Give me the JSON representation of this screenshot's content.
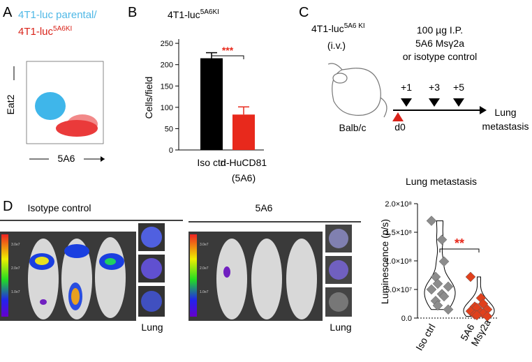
{
  "panel_labels": [
    "A",
    "B",
    "C",
    "D"
  ],
  "panel_a": {
    "title_1": "4T1-luc parental/",
    "title_2": "4T1-luc",
    "title_2_sup": "5A6KI",
    "y_label": "Eat2",
    "x_label": "5A6"
  },
  "panel_c": {
    "cell_line": "4T1-luc",
    "cell_line_sup": "5A6 KI",
    "route": "(i.v.)",
    "treatment": [
      "100 µg I.P.",
      "5A6 Msγ2a",
      "or isotype control"
    ],
    "days": [
      "+1",
      "+3",
      "+5"
    ],
    "start": "d0",
    "mouse": "Balb/c",
    "outcome": [
      "Lung",
      "metastasis"
    ]
  },
  "panel_d": {
    "groups": [
      "Isotype control",
      "5A6"
    ],
    "organ": "Lung",
    "scale_labels": [
      "3.0e7",
      "2.0e7",
      "1.0e7"
    ]
  },
  "chart_data": [
    {
      "type": "bar",
      "title": "4T1-luc",
      "title_sup": "5A6KI",
      "y_label": "Cells/field",
      "categories": [
        "Iso ctrl",
        "α-HuCD81"
      ],
      "category_sublabels": [
        null,
        "(5A6)"
      ],
      "values": [
        215,
        83
      ],
      "errors": [
        13,
        18
      ],
      "colors": [
        "#000000",
        "#e8291c"
      ],
      "ylim": [
        0,
        260
      ],
      "yticks": [
        0,
        50,
        100,
        150,
        200,
        250
      ],
      "significance": "***",
      "significance_color": "#e8291c"
    },
    {
      "type": "violin",
      "title": "Lung metastasis",
      "y_label": "Luminescence  (p/s)",
      "categories": [
        "Iso ctrl",
        "5A6\nMsγ2a"
      ],
      "series": [
        {
          "name": "Iso ctrl",
          "color": "#8c8c8c",
          "values": [
            170000000,
            137000000,
            99000000,
            72000000,
            60000000,
            55000000,
            50000000,
            42000000,
            38000000,
            30000000,
            22000000,
            15000000
          ]
        },
        {
          "name": "5A6 Msγ2a",
          "color": "#e0401c",
          "values": [
            72000000,
            35000000,
            25000000,
            20000000,
            18000000,
            15000000,
            12000000,
            10000000,
            8000000,
            6000000,
            5000000,
            3000000
          ]
        }
      ],
      "ylim": [
        0,
        200000000
      ],
      "yticks": [
        {
          "value": 0,
          "label": "0.0"
        },
        {
          "value": 50000000,
          "label": "5.0×10⁷"
        },
        {
          "value": 100000000,
          "label": "1.0×10⁸"
        },
        {
          "value": 150000000,
          "label": "1.5×10⁸"
        },
        {
          "value": 200000000,
          "label": "2.0×10⁸"
        }
      ],
      "significance": "**",
      "significance_color": "#e8291c"
    }
  ]
}
